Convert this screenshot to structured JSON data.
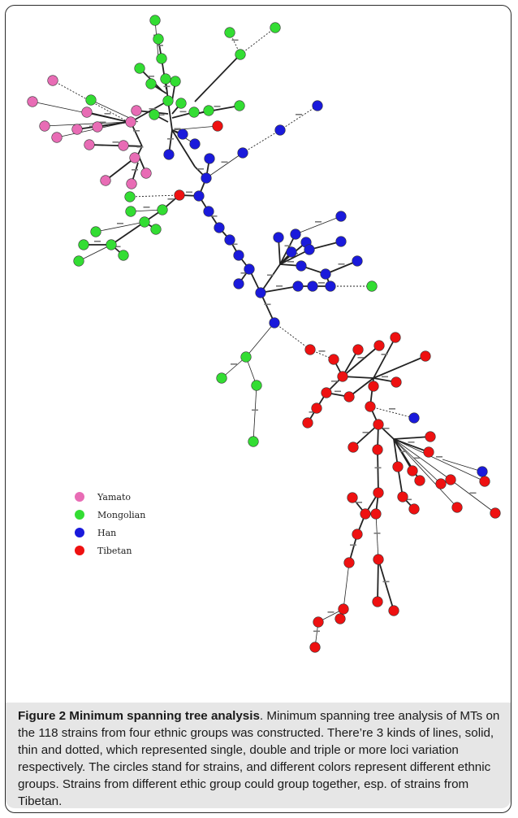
{
  "legend": [
    {
      "label": "Yamato",
      "color": "#e86cb5"
    },
    {
      "label": "Mongolian",
      "color": "#33dd33"
    },
    {
      "label": "Han",
      "color": "#1a1adb"
    },
    {
      "label": "Tibetan",
      "color": "#ee1111"
    }
  ],
  "colors": {
    "Y": "#e86cb5",
    "M": "#33dd33",
    "H": "#1a1adb",
    "T": "#ee1111"
  },
  "caption": {
    "label": "Figure 2 Minimum spanning tree analysis",
    "text": ". Minimum spanning tree analysis of MTs on the 118 strains from four ethnic groups was constructed. There’re 3 kinds of lines, solid, thin and dotted, which represented single, double and triple or more loci variation respectively. The circles stand for strains, and different colors represent different ethnic groups. Strains from different ethic group could group together, esp. of strains from Tibetan."
  }
}
